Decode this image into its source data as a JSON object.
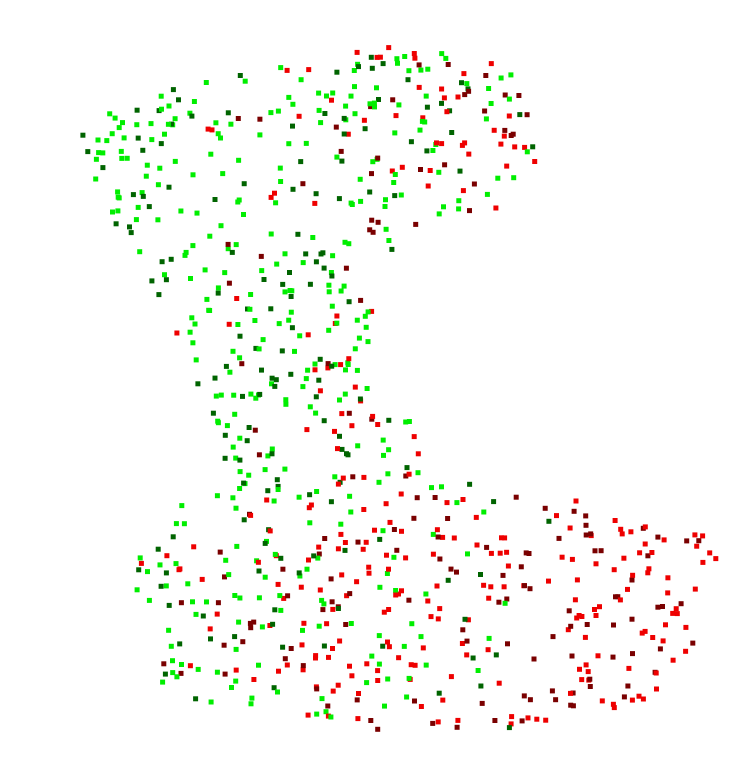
{
  "chart_data": {
    "type": "scatter",
    "title": "",
    "xlabel": "",
    "ylabel": "",
    "grid": false,
    "axes_visible": false,
    "legend": "none",
    "marker": "square",
    "palette": [
      "#00ee00",
      "#006400",
      "#ee0000",
      "#7a0000"
    ],
    "xlim": [
      0,
      746
    ],
    "ylim": [
      0,
      766
    ],
    "point_count": 900,
    "seed": 1234567
  }
}
